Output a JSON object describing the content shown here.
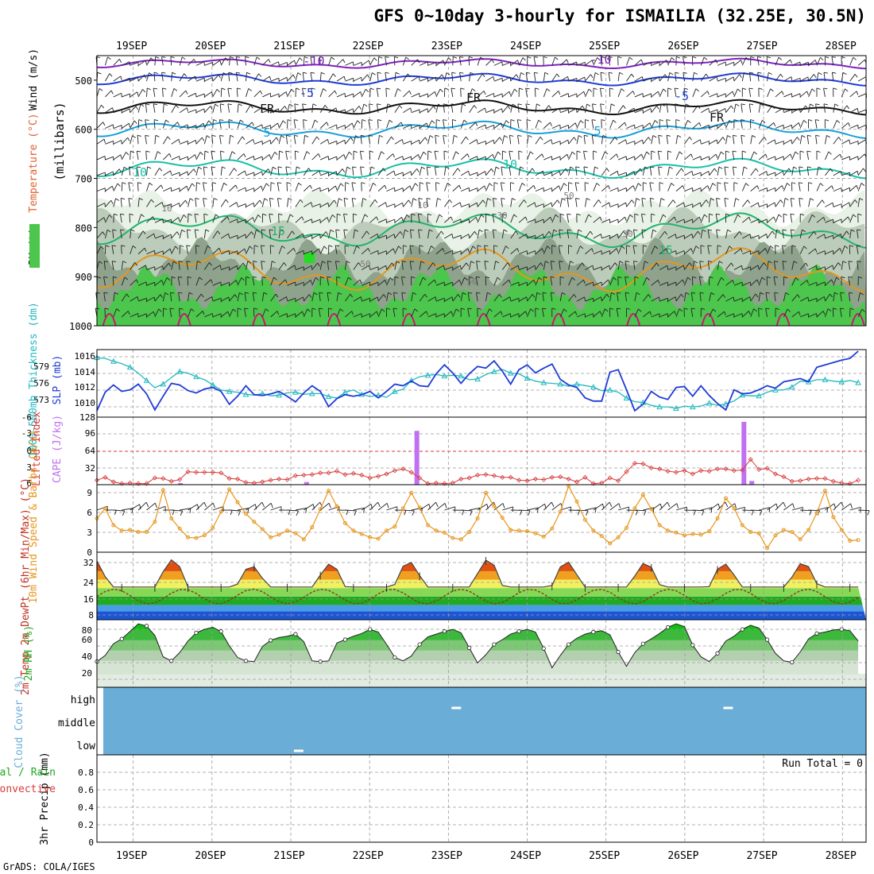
{
  "title": "GFS 0~10day 3-hourly for ISMAILIA (32.25E, 30.5N)",
  "credit": "GrADS: COLA/IGES",
  "colors": {
    "grid": "#9a9a9a",
    "rh_light": "#e8f2e6",
    "rh_mid": "#bcccba",
    "rh_dark": "#8ea28c",
    "rh_green": "#4cc64c",
    "rh_bright": "#22dd22",
    "wind_temp": "#8020c0",
    "blue": "#1f3cd6",
    "cyan": "#1aa0d8",
    "teal": "#18c0a8",
    "green": "#22b36c",
    "orange": "#e6961c",
    "magenta": "#d0107a",
    "slp": "#1f3cd6",
    "thick": "#20b8c0",
    "li": "#d83a3a",
    "cape": "#c070f0",
    "wind10": "#e6961c",
    "barb": "#5a3a1e",
    "cloud": "#6aaed8",
    "rh2": "#1faa1f"
  },
  "chart_data": [
    {
      "id": "upper_air",
      "type": "contour",
      "ylabel_colored": [
        "RH (%)",
        "Temperature (°C)",
        "Wind (m/s)"
      ],
      "ylabel_units": "(millibars)",
      "ylim": [
        1000,
        450
      ],
      "yticks": [
        500,
        600,
        700,
        800,
        900,
        1000
      ],
      "x_dates": [
        "19SEP",
        "20SEP",
        "21SEP",
        "22SEP",
        "23SEP",
        "24SEP",
        "25SEP",
        "26SEP",
        "27SEP",
        "28SEP"
      ],
      "temperature_contour_labels": [
        "-10",
        "-10",
        "-5",
        "-5",
        "FR",
        "FR",
        "FR",
        "5",
        "5",
        "10",
        "10",
        "15",
        "15"
      ],
      "rh_contour_labels": [
        "10",
        "10",
        "30",
        "30",
        "50",
        "50",
        "50"
      ]
    },
    {
      "id": "slp_thickness",
      "type": "line",
      "ylabel_left": "1000-500mb Thickness (dm)",
      "ylabel_right": "SLP (mb)",
      "thickness_ticks": [
        "579",
        "576",
        "573"
      ],
      "slp_ticks": [
        "1016",
        "1014",
        "1012",
        "1010"
      ],
      "series": [
        {
          "name": "SLP (mb)",
          "ylim": [
            1008.4,
            1016.8
          ],
          "values": [
            1009.2,
            1011.5,
            1012.4,
            1011.6,
            1011.8,
            1012.5,
            1011.3,
            1009.3,
            1011.0,
            1012.6,
            1012.4,
            1011.7,
            1011.4,
            1011.9,
            1012.1,
            1011.6,
            1010.0,
            1011.0,
            1012.3,
            1011.2,
            1011.1,
            1011.3,
            1011.6,
            1011.0,
            1010.3,
            1011.4,
            1012.3,
            1011.6,
            1009.7,
            1010.7,
            1011.2,
            1011.0,
            1011.2,
            1011.6,
            1010.8,
            1011.6,
            1012.5,
            1012.3,
            1012.9,
            1012.3,
            1012.2,
            1013.8,
            1014.9,
            1013.9,
            1012.6,
            1013.8,
            1014.7,
            1014.5,
            1015.4,
            1014.1,
            1012.5,
            1014.3,
            1014.9,
            1013.9,
            1014.5,
            1015.0,
            1013.1,
            1012.4,
            1012.1,
            1010.8,
            1010.4,
            1010.4,
            1014.0,
            1014.3,
            1011.8,
            1009.2,
            1010.0,
            1011.6,
            1010.9,
            1010.6,
            1012.1,
            1012.2,
            1011.0,
            1012.3,
            1011.1,
            1010.1,
            1009.3,
            1011.8,
            1011.3,
            1011.4,
            1011.8,
            1012.3,
            1012.0,
            1012.8,
            1013.0,
            1013.2,
            1012.8,
            1014.6,
            1014.9,
            1015.2,
            1015.5,
            1015.7,
            1016.6
          ]
        },
        {
          "name": "1000-500mb Thickness (dm)",
          "ylim": [
            571.4,
            580.6
          ],
          "values": [
            579.5,
            579.4,
            579.0,
            578.7,
            578.2,
            577.4,
            576.4,
            575.4,
            575.9,
            576.8,
            577.6,
            577.4,
            576.9,
            576.5,
            575.8,
            575.1,
            574.9,
            574.8,
            574.5,
            574.4,
            574.6,
            574.3,
            574.4,
            574.7,
            574.8,
            574.5,
            574.6,
            574.6,
            574.2,
            574.0,
            574.8,
            575.1,
            574.5,
            574.2,
            574.4,
            574.1,
            574.9,
            575.2,
            576.4,
            576.9,
            577.1,
            577.2,
            577.0,
            577.1,
            577.0,
            576.5,
            576.6,
            577.2,
            577.6,
            577.9,
            577.4,
            577.3,
            576.7,
            576.3,
            576.1,
            576.0,
            575.9,
            575.6,
            575.9,
            575.7,
            575.5,
            575.0,
            575.1,
            574.8,
            574.0,
            573.5,
            573.4,
            573.0,
            572.8,
            572.8,
            572.6,
            572.9,
            572.8,
            572.9,
            573.3,
            573.0,
            573.2,
            573.6,
            574.4,
            574.3,
            574.3,
            574.8,
            575.1,
            575.1,
            575.5,
            576.3,
            576.2,
            576.5,
            576.5,
            576.3,
            576.2,
            576.4,
            576.1
          ]
        }
      ]
    },
    {
      "id": "li_cape",
      "type": "bar+line",
      "ylabel_left": "Lifted Index",
      "ylabel_right": "CAPE (J/kg)",
      "li_ticks": [
        "-6",
        "-3",
        "0",
        "3",
        "6"
      ],
      "cape_ticks": [
        "128",
        "96",
        "64",
        "32"
      ],
      "series": [
        {
          "name": "Lifted Index",
          "ylim": [
            6,
            -6
          ],
          "values": [
            5.2,
            4.7,
            5.5,
            5.8,
            5.7,
            5.8,
            5.8,
            4.8,
            4.9,
            5.4,
            5.1,
            3.7,
            3.8,
            3.8,
            3.8,
            3.9,
            4.9,
            5.0,
            5.6,
            5.7,
            5.5,
            5.2,
            5.0,
            5.1,
            4.4,
            4.3,
            4.2,
            3.9,
            3.9,
            3.6,
            4.2,
            4.0,
            4.3,
            4.8,
            4.5,
            4.1,
            3.5,
            3.2,
            3.8,
            4.8,
            5.8,
            5.7,
            5.8,
            5.7,
            5.0,
            4.8,
            4.3,
            4.2,
            4.4,
            4.7,
            4.7,
            5.2,
            5.3,
            5.0,
            5.1,
            4.7,
            4.6,
            5.0,
            5.5,
            4.7,
            5.8,
            5.7,
            4.8,
            5.3,
            3.7,
            2.2,
            2.3,
            3.0,
            3.2,
            3.6,
            3.8,
            3.5,
            4.1,
            3.5,
            3.6,
            3.2,
            3.2,
            3.5,
            3.4,
            1.5,
            3.3,
            3.1,
            4.1,
            4.6,
            5.4,
            5.3,
            5.0,
            4.9,
            4.9,
            5.4,
            5.7,
            5.8,
            5.2
          ]
        },
        {
          "name": "CAPE (J/kg)",
          "ylim": [
            0,
            128
          ],
          "bars": [
            {
              "day": 19.6,
              "value": 3
            },
            {
              "day": 21.2,
              "value": 5
            },
            {
              "day": 22.6,
              "value": 102
            },
            {
              "day": 26.75,
              "value": 119
            },
            {
              "day": 26.85,
              "value": 7
            }
          ]
        }
      ]
    },
    {
      "id": "wind10",
      "type": "line",
      "ylabel": "10m Wind Speed & Barbs (m/s)",
      "ylim": [
        0,
        10
      ],
      "yticks": [
        "0",
        "3",
        "6",
        "9"
      ],
      "series": [
        {
          "name": "10m Wind Speed (m/s)",
          "values": [
            5.0,
            6.5,
            4.0,
            3.2,
            3.3,
            3.0,
            3.0,
            4.5,
            9.2,
            5.0,
            3.5,
            2.2,
            2.1,
            2.5,
            3.6,
            6.0,
            9.3,
            7.4,
            5.7,
            4.5,
            3.4,
            2.2,
            2.6,
            3.2,
            2.8,
            1.9,
            3.7,
            6.4,
            9.1,
            6.8,
            4.3,
            3.2,
            2.7,
            2.2,
            2.0,
            3.2,
            3.8,
            6.5,
            8.8,
            6.6,
            4.0,
            3.2,
            2.9,
            2.1,
            1.9,
            3.0,
            5.0,
            8.8,
            6.8,
            5.1,
            3.3,
            3.2,
            3.1,
            2.8,
            2.3,
            3.5,
            6.0,
            9.8,
            7.5,
            4.8,
            3.2,
            2.4,
            1.3,
            2.2,
            3.6,
            6.5,
            8.5,
            6.4,
            4.0,
            3.2,
            2.9,
            2.5,
            2.7,
            2.6,
            3.1,
            5.0,
            8.0,
            6.5,
            4.0,
            3.0,
            2.8,
            0.6,
            2.5,
            3.3,
            3.0,
            1.9,
            3.3,
            5.8,
            9.1,
            5.2,
            3.3,
            1.7,
            1.8
          ]
        }
      ]
    },
    {
      "id": "temp2m",
      "type": "area",
      "ylabel": "2m Temp 2m DewPt (6hr Min/Max) (°C)",
      "ylim": [
        5,
        37
      ],
      "yticks": [
        "8",
        "16",
        "24",
        "32"
      ],
      "day_peaks": [
        33.5,
        30.5,
        31.5,
        32.5,
        33.5,
        32.5,
        32.0,
        31.5,
        32.0
      ],
      "night_min": 20.5,
      "dewpoint_range": [
        12,
        20
      ]
    },
    {
      "id": "rh2m",
      "type": "area",
      "ylabel": "2m RH (%)",
      "ylim": [
        10,
        90
      ],
      "yticks": [
        "20",
        "40",
        "60",
        "80"
      ],
      "series": [
        {
          "name": "2m RH (%)",
          "values": [
            29,
            38,
            55,
            62,
            73,
            84,
            81,
            67,
            36,
            30,
            42,
            59,
            71,
            76,
            79,
            73,
            52,
            35,
            30,
            29,
            51,
            60,
            64,
            66,
            69,
            58,
            30,
            29,
            30,
            56,
            61,
            66,
            70,
            76,
            72,
            54,
            35,
            30,
            37,
            54,
            65,
            69,
            73,
            76,
            71,
            49,
            27,
            39,
            54,
            61,
            69,
            73,
            76,
            72,
            48,
            20,
            38,
            54,
            63,
            69,
            72,
            74,
            68,
            43,
            22,
            42,
            55,
            62,
            70,
            79,
            84,
            80,
            53,
            36,
            29,
            41,
            59,
            66,
            76,
            82,
            78,
            61,
            41,
            30,
            28,
            43,
            62,
            70,
            72,
            75,
            76,
            74,
            59
          ]
        }
      ]
    },
    {
      "id": "cloud",
      "type": "heatmap",
      "ylabel": "Cloud Cover (%)",
      "levels": [
        "high",
        "middle",
        "low"
      ],
      "clear_marks": [
        {
          "level": "low",
          "day": 21.1
        },
        {
          "level": "high",
          "day": 23.1
        },
        {
          "level": "high",
          "day": 26.55
        }
      ]
    },
    {
      "id": "precip",
      "type": "bar",
      "ylabel_colored": [
        "Total / Rain",
        "Convective"
      ],
      "ylabel": "3hr Precip (mm)",
      "ylim": [
        0,
        1
      ],
      "yticks": [
        "0",
        "0.2",
        "0.4",
        "0.6",
        "0.8"
      ],
      "run_total": "Run Total = 0",
      "values": []
    }
  ]
}
